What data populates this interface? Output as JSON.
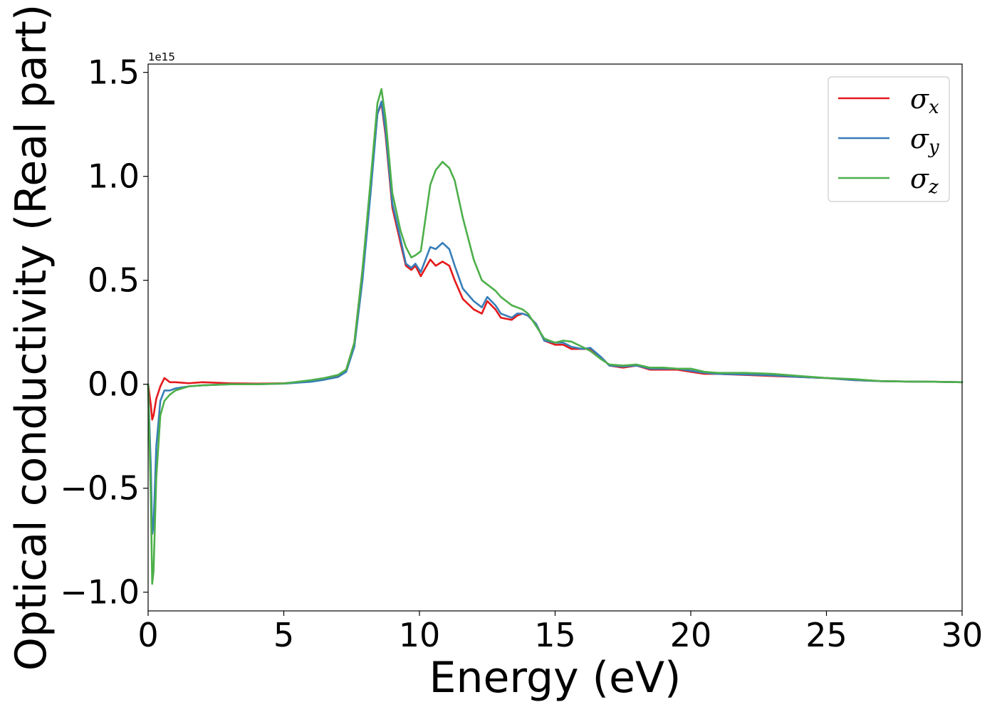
{
  "chart_data": {
    "type": "line",
    "xlabel": "Energy (eV)",
    "ylabel": "Optical conductivity (Real part)",
    "y_offset_label": "1e15",
    "xlim": [
      0,
      30
    ],
    "ylim": [
      -1.09,
      1.54
    ],
    "x_ticks": [
      0,
      5,
      10,
      15,
      20,
      25,
      30
    ],
    "x_tick_labels": [
      "0",
      "5",
      "10",
      "15",
      "20",
      "25",
      "30"
    ],
    "y_ticks": [
      -1.0,
      -0.5,
      0.0,
      0.5,
      1.0,
      1.5
    ],
    "y_tick_labels": [
      "−1.0",
      "−0.5",
      "0.0",
      "0.5",
      "1.0",
      "1.5"
    ],
    "grid": false,
    "legend_position": "top-right",
    "series": [
      {
        "name": "σx",
        "symbol": "σ",
        "subscript": "x",
        "color": "#e41a1c",
        "x": [
          0,
          0.1,
          0.15,
          0.2,
          0.3,
          0.45,
          0.6,
          0.8,
          1.0,
          1.5,
          2,
          3,
          4,
          5,
          6,
          6.5,
          7,
          7.3,
          7.6,
          7.9,
          8.2,
          8.45,
          8.6,
          8.75,
          9.0,
          9.3,
          9.5,
          9.7,
          9.85,
          10.05,
          10.4,
          10.6,
          10.85,
          11.1,
          11.3,
          11.6,
          12.0,
          12.3,
          12.5,
          12.8,
          13.0,
          13.4,
          13.6,
          13.8,
          14.0,
          14.3,
          14.6,
          15.0,
          15.3,
          15.6,
          16.0,
          16.3,
          16.7,
          17.0,
          17.5,
          18.0,
          18.5,
          19.0,
          19.5,
          20,
          20.5,
          21,
          22,
          23,
          24,
          25,
          26,
          27,
          28,
          29,
          30
        ],
        "y": [
          0,
          -0.1,
          -0.17,
          -0.15,
          -0.07,
          -0.01,
          0.03,
          0.01,
          0.01,
          0.005,
          0.01,
          0.005,
          0.003,
          0.005,
          0.015,
          0.025,
          0.04,
          0.07,
          0.2,
          0.55,
          0.95,
          1.3,
          1.35,
          1.2,
          0.85,
          0.68,
          0.57,
          0.55,
          0.57,
          0.52,
          0.6,
          0.57,
          0.59,
          0.57,
          0.5,
          0.41,
          0.36,
          0.34,
          0.4,
          0.36,
          0.32,
          0.31,
          0.33,
          0.34,
          0.33,
          0.29,
          0.21,
          0.19,
          0.19,
          0.17,
          0.17,
          0.17,
          0.13,
          0.09,
          0.08,
          0.09,
          0.07,
          0.07,
          0.07,
          0.06,
          0.05,
          0.05,
          0.045,
          0.04,
          0.035,
          0.03,
          0.02,
          0.015,
          0.013,
          0.012,
          0.01
        ]
      },
      {
        "name": "σy",
        "symbol": "σ",
        "subscript": "y",
        "color": "#377eb8",
        "x": [
          0,
          0.1,
          0.15,
          0.2,
          0.3,
          0.45,
          0.6,
          0.8,
          1.0,
          1.5,
          2,
          3,
          4,
          5,
          6,
          6.5,
          7,
          7.3,
          7.6,
          7.9,
          8.2,
          8.45,
          8.6,
          8.75,
          9.0,
          9.3,
          9.5,
          9.7,
          9.85,
          10.05,
          10.4,
          10.6,
          10.85,
          11.1,
          11.3,
          11.6,
          12.0,
          12.3,
          12.5,
          12.8,
          13.0,
          13.4,
          13.6,
          13.8,
          14.0,
          14.3,
          14.6,
          15.0,
          15.3,
          15.6,
          16.0,
          16.3,
          16.7,
          17.0,
          17.5,
          18.0,
          18.5,
          19.0,
          19.5,
          20,
          20.5,
          21,
          22,
          23,
          24,
          25,
          26,
          27,
          28,
          29,
          30
        ],
        "y": [
          0,
          -0.4,
          -0.72,
          -0.68,
          -0.3,
          -0.08,
          -0.03,
          -0.03,
          -0.02,
          -0.01,
          -0.005,
          0.0,
          0.0,
          0.003,
          0.012,
          0.022,
          0.035,
          0.06,
          0.18,
          0.5,
          0.92,
          1.3,
          1.36,
          1.22,
          0.87,
          0.7,
          0.58,
          0.56,
          0.58,
          0.54,
          0.66,
          0.65,
          0.68,
          0.65,
          0.57,
          0.46,
          0.4,
          0.37,
          0.42,
          0.38,
          0.34,
          0.32,
          0.34,
          0.34,
          0.33,
          0.29,
          0.21,
          0.2,
          0.2,
          0.18,
          0.17,
          0.175,
          0.13,
          0.09,
          0.085,
          0.09,
          0.075,
          0.075,
          0.075,
          0.065,
          0.055,
          0.05,
          0.047,
          0.043,
          0.035,
          0.03,
          0.02,
          0.015,
          0.013,
          0.012,
          0.01
        ]
      },
      {
        "name": "σz",
        "symbol": "σ",
        "subscript": "z",
        "color": "#4daf4a",
        "x": [
          0,
          0.1,
          0.15,
          0.2,
          0.3,
          0.45,
          0.6,
          0.8,
          1.0,
          1.5,
          2,
          3,
          4,
          5,
          6,
          6.5,
          7,
          7.3,
          7.6,
          7.9,
          8.2,
          8.45,
          8.6,
          8.75,
          9.0,
          9.3,
          9.5,
          9.7,
          9.85,
          10.05,
          10.4,
          10.6,
          10.85,
          11.1,
          11.3,
          11.6,
          12.0,
          12.3,
          12.5,
          12.8,
          13.0,
          13.4,
          13.6,
          13.8,
          14.0,
          14.3,
          14.6,
          15.0,
          15.3,
          15.6,
          16.0,
          16.3,
          16.7,
          17.0,
          17.5,
          18.0,
          18.5,
          19.0,
          19.5,
          20,
          20.5,
          21,
          22,
          23,
          24,
          25,
          26,
          27,
          28,
          29,
          30
        ],
        "y": [
          0,
          -0.55,
          -0.96,
          -0.9,
          -0.45,
          -0.15,
          -0.08,
          -0.05,
          -0.03,
          -0.01,
          -0.005,
          0.0,
          0.0,
          0.004,
          0.02,
          0.03,
          0.045,
          0.07,
          0.2,
          0.55,
          0.98,
          1.35,
          1.42,
          1.28,
          0.92,
          0.74,
          0.66,
          0.61,
          0.62,
          0.64,
          0.96,
          1.03,
          1.07,
          1.04,
          0.98,
          0.8,
          0.6,
          0.5,
          0.48,
          0.45,
          0.42,
          0.38,
          0.37,
          0.36,
          0.34,
          0.28,
          0.22,
          0.2,
          0.21,
          0.205,
          0.18,
          0.16,
          0.12,
          0.095,
          0.09,
          0.095,
          0.08,
          0.08,
          0.075,
          0.075,
          0.06,
          0.055,
          0.055,
          0.05,
          0.04,
          0.03,
          0.025,
          0.015,
          0.013,
          0.012,
          0.01
        ]
      }
    ]
  }
}
